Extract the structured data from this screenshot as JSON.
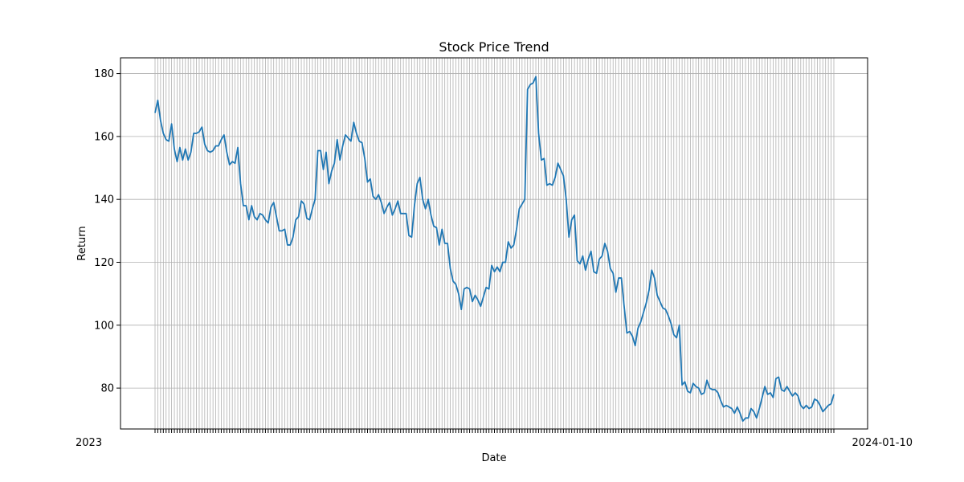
{
  "chart_data": {
    "type": "line",
    "title": "Stock Price Trend",
    "xlabel": "Date",
    "ylabel": "Return",
    "ylim": [
      67,
      185
    ],
    "yticks": [
      80,
      100,
      120,
      140,
      160,
      180
    ],
    "ytick_labels": [
      "80",
      "100",
      "120",
      "140",
      "160",
      "180"
    ],
    "grid": true,
    "x_tick_labels_overlapping": true,
    "x_left_label": "2023",
    "x_right_label": "2024-01-10",
    "series": [
      {
        "color": "#1f77b4",
        "values": [
          167.5,
          171.5,
          165.0,
          161.0,
          159.0,
          158.5,
          164.0,
          156.0,
          152.0,
          156.5,
          152.5,
          156.0,
          152.5,
          155.0,
          161.0,
          161.0,
          161.5,
          163.0,
          157.5,
          155.5,
          155.0,
          155.5,
          157.0,
          157.0,
          159.0,
          160.5,
          155.0,
          151.0,
          152.0,
          151.5,
          156.5,
          145.0,
          138.0,
          138.0,
          133.5,
          138.0,
          134.5,
          133.5,
          135.5,
          135.0,
          133.5,
          132.5,
          137.5,
          139.0,
          134.5,
          130.0,
          130.0,
          130.5,
          125.5,
          125.5,
          128.0,
          133.5,
          134.5,
          139.5,
          138.5,
          134.0,
          133.5,
          137.0,
          140.0,
          155.5,
          155.5,
          149.5,
          155.0,
          145.0,
          149.0,
          151.5,
          159.0,
          152.5,
          157.0,
          160.5,
          159.5,
          158.5,
          164.5,
          161.0,
          158.5,
          158.0,
          153.0,
          145.5,
          146.5,
          141.0,
          140.0,
          141.5,
          139.0,
          135.5,
          137.5,
          139.0,
          135.0,
          137.0,
          139.5,
          135.5,
          135.5,
          135.5,
          128.5,
          128.0,
          138.0,
          145.0,
          147.0,
          140.0,
          137.0,
          140.0,
          135.0,
          131.5,
          131.0,
          125.5,
          130.5,
          126.0,
          126.0,
          118.0,
          114.0,
          113.0,
          110.0,
          105.0,
          111.5,
          112.0,
          111.5,
          107.5,
          109.5,
          108.0,
          106.0,
          109.0,
          112.0,
          111.5,
          119.0,
          117.0,
          118.5,
          117.0,
          120.0,
          120.0,
          126.5,
          124.5,
          125.5,
          130.5,
          137.0,
          138.5,
          140.0,
          175.0,
          176.5,
          177.0,
          179.0,
          161.0,
          152.5,
          153.0,
          144.5,
          145.0,
          144.5,
          147.0,
          151.5,
          149.5,
          147.5,
          140.0,
          128.0,
          133.5,
          135.0,
          120.5,
          119.5,
          122.0,
          117.5,
          121.0,
          123.5,
          117.0,
          116.5,
          121.0,
          122.0,
          126.0,
          123.5,
          118.0,
          116.5,
          110.5,
          115.0,
          115.0,
          106.0,
          97.5,
          98.0,
          96.5,
          93.5,
          99.0,
          101.0,
          104.0,
          107.0,
          111.0,
          117.5,
          115.0,
          109.5,
          107.5,
          105.5,
          105.0,
          103.0,
          100.5,
          97.0,
          96.0,
          100.0,
          81.0,
          82.0,
          79.0,
          78.5,
          81.5,
          80.5,
          80.0,
          78.0,
          78.5,
          82.5,
          80.0,
          79.5,
          79.5,
          78.5,
          76.0,
          74.0,
          74.5,
          74.0,
          73.5,
          72.0,
          74.0,
          72.0,
          69.5,
          70.5,
          70.5,
          73.5,
          72.5,
          70.5,
          73.5,
          77.0,
          80.5,
          78.0,
          78.5,
          77.0,
          83.0,
          83.5,
          79.5,
          79.0,
          80.5,
          79.0,
          77.5,
          78.5,
          77.5,
          74.5,
          73.5,
          74.5,
          73.5,
          74.0,
          76.5,
          76.0,
          74.5,
          72.5,
          73.5,
          74.5,
          75.0,
          78.0
        ]
      }
    ]
  }
}
